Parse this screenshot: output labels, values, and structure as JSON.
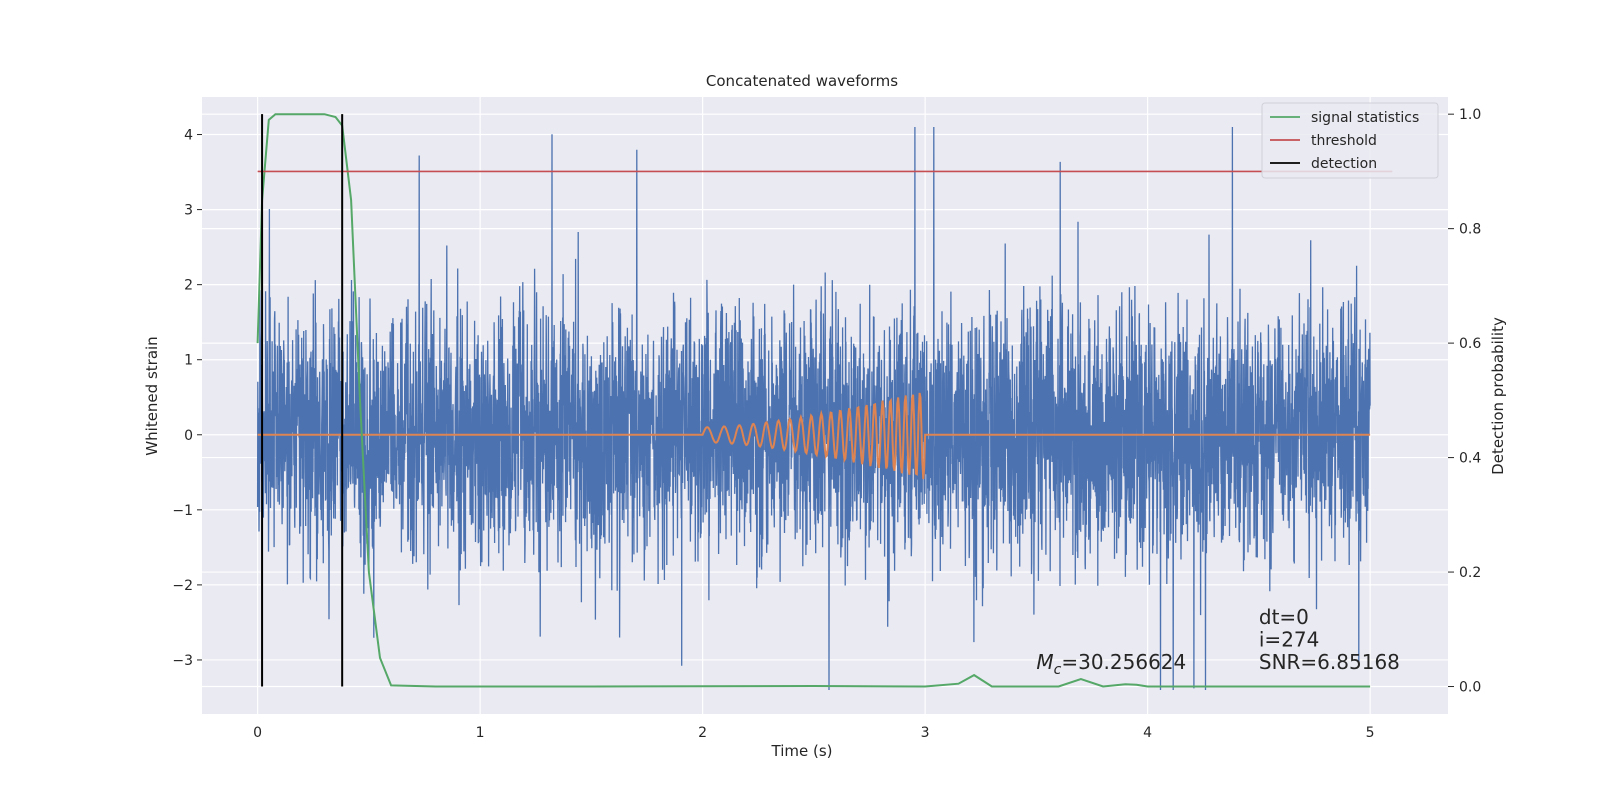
{
  "chart_data": {
    "type": "line",
    "title": "Concatenated waveforms",
    "xlabel": "Time (s)",
    "ylabel": "Whitened strain",
    "ylabel_right": "Detection probability",
    "xlim": [
      -0.25,
      5.35
    ],
    "ylim": [
      -3.72,
      4.5
    ],
    "ylim_right": [
      -0.048,
      1.03
    ],
    "x_ticks": [
      0,
      1,
      2,
      3,
      4,
      5
    ],
    "y_ticks": [
      -3,
      -2,
      -1,
      0,
      1,
      2,
      3,
      4
    ],
    "y_right_ticks": [
      0.0,
      0.2,
      0.4,
      0.6,
      0.8,
      1.0
    ],
    "y_right_tick_labels": [
      "0.0",
      "0.2",
      "0.4",
      "0.6",
      "0.8",
      "1.0"
    ],
    "grid": true,
    "legend_position": "top-right",
    "legend": [
      {
        "label": "signal statistics",
        "color": "#55a868"
      },
      {
        "label": "threshold",
        "color": "#c44e52"
      },
      {
        "label": "detection",
        "color": "#000000"
      }
    ],
    "colors": {
      "strain": "#4c72b0",
      "template": "#dd8452",
      "signal_statistics": "#55a868",
      "threshold": "#c44e52",
      "detection": "#000000",
      "plot_bg": "#eaeaf2",
      "grid": "#ffffff"
    },
    "series": [
      {
        "role": "strain",
        "axis": "left",
        "x_range": [
          0,
          5
        ],
        "amplitude_typical": 1.3,
        "amplitude_peak": 4.1
      },
      {
        "role": "template",
        "axis": "left",
        "chirp_start": 2.0,
        "chirp_end": 3.0,
        "amplitude_end": 0.6
      },
      {
        "role": "signal_statistics",
        "axis": "right",
        "x": [
          0,
          0.02,
          0.05,
          0.08,
          0.12,
          0.2,
          0.3,
          0.35,
          0.38,
          0.42,
          0.46,
          0.5,
          0.55,
          0.6,
          0.8,
          1.5,
          2.5,
          3.0,
          3.15,
          3.22,
          3.3,
          3.6,
          3.7,
          3.8,
          3.9,
          3.95,
          4.0,
          4.5,
          5.0
        ],
        "y": [
          0.6,
          0.85,
          0.99,
          1.0,
          1.0,
          1.0,
          1.0,
          0.995,
          0.98,
          0.85,
          0.5,
          0.2,
          0.05,
          0.002,
          0.0,
          0.0,
          0.001,
          0.0,
          0.005,
          0.02,
          0.0,
          0.0,
          0.013,
          0.0,
          0.004,
          0.003,
          0.0,
          0.0,
          0.0
        ]
      },
      {
        "role": "threshold",
        "axis": "right",
        "x": [
          0,
          5.1
        ],
        "y": [
          0.9,
          0.9
        ]
      },
      {
        "role": "detection",
        "axis": "right",
        "x_positions": [
          0.02,
          0.38
        ],
        "y_range": [
          0.0,
          1.0
        ]
      }
    ],
    "annotations": [
      {
        "text": "dt=0",
        "x": 4.5,
        "y": -2.52
      },
      {
        "text": "i=274",
        "x": 4.5,
        "y": -2.82
      },
      {
        "text": "SNR=6.85168",
        "x": 4.5,
        "y": -3.12
      },
      {
        "text": "=30.256624",
        "prefix_symbol": "M",
        "prefix_subscript": "c",
        "x": 3.5,
        "y": -3.12
      }
    ]
  }
}
